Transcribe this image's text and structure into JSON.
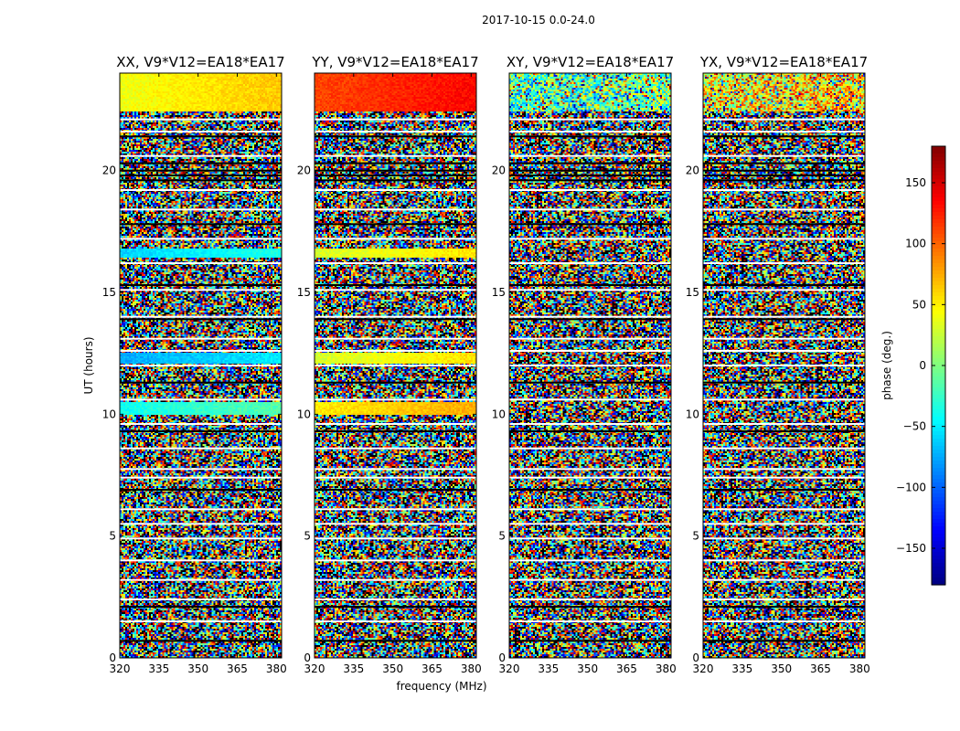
{
  "chart_data": {
    "type": "heatmap",
    "suptitle": "2017-10-15 0.0-24.0",
    "xlabel": "frequency (MHz)",
    "ylabel": "UT (hours)",
    "xlim": [
      320,
      382
    ],
    "ylim": [
      0,
      24
    ],
    "xticks": [
      "320",
      "335",
      "350",
      "365",
      "380"
    ],
    "yticks": [
      "0",
      "5",
      "10",
      "15",
      "20"
    ],
    "colormap": "jet",
    "colorbar": {
      "label": "phase (deg.)",
      "range": [
        -180,
        180
      ],
      "ticks": [
        "150",
        "100",
        "50",
        "0",
        "−50",
        "−100",
        "−150"
      ],
      "tick_values": [
        150,
        100,
        50,
        0,
        -50,
        -100,
        -150
      ]
    },
    "panels": [
      {
        "title": "XX, V9*V12=EA18*EA17",
        "band_phases": {
          "top": 40,
          "hour16_5": -60,
          "hour12_3": -75,
          "hour10_3": -40
        }
      },
      {
        "title": "YY, V9*V12=EA18*EA17",
        "band_phases": {
          "top": 110,
          "hour16_5": 30,
          "hour12_3": 30,
          "hour10_3": 50
        }
      },
      {
        "title": "XY, V9*V12=EA18*EA17",
        "band_phases": {
          "top": -30
        }
      },
      {
        "title": "YX, V9*V12=EA18*EA17",
        "band_phases": {
          "top": 40
        }
      }
    ]
  }
}
